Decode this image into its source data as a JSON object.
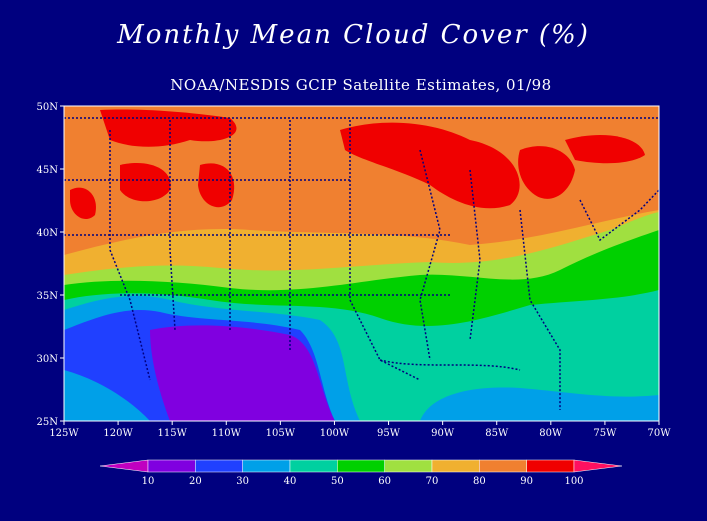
{
  "header": {
    "title": "Monthly Mean Cloud Cover (%)",
    "subtitle": "NOAA/NESDIS GCIP Satellite Estimates, 01/98"
  },
  "colors": {
    "background": "#00007f",
    "land_fill_default": "#e8b23a"
  },
  "map": {
    "type": "contour-map",
    "variable": "cloud cover",
    "units": "%",
    "lat_ticks": [
      "25N",
      "30N",
      "35N",
      "40N",
      "45N",
      "50N"
    ],
    "lon_ticks": [
      "125W",
      "120W",
      "115W",
      "110W",
      "105W",
      "100W",
      "95W",
      "90W",
      "85W",
      "80W",
      "75W",
      "70W"
    ],
    "lat_range": [
      25,
      50
    ],
    "lon_range": [
      -125,
      -70
    ],
    "overlays": [
      "state boundaries (dotted)",
      "country boundaries (dotted)"
    ]
  },
  "colorbar": {
    "labels": [
      "10",
      "20",
      "30",
      "40",
      "50",
      "60",
      "70",
      "80",
      "90",
      "100"
    ],
    "colors": [
      "#c000c0",
      "#8000e0",
      "#2040ff",
      "#00a0e8",
      "#00d0a0",
      "#00d000",
      "#a0e040",
      "#f0b030",
      "#f08030",
      "#f00000",
      "#ff1060"
    ]
  }
}
